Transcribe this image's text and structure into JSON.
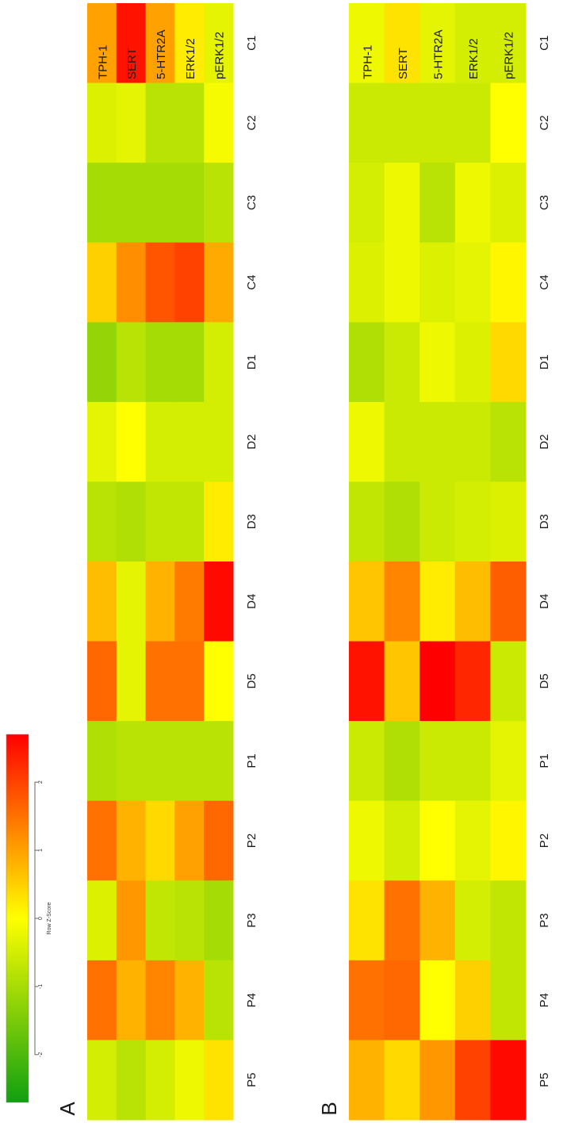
{
  "chart_data": {
    "type": "heatmap",
    "colorbar": {
      "label": "Row Z-Score",
      "ticks": [
        -2,
        -1,
        0,
        1,
        2
      ],
      "range": [
        -2.7,
        2.7
      ],
      "colors": [
        "#10a010",
        "#ffff00",
        "#ff0000"
      ]
    },
    "samples": [
      "C1",
      "C2",
      "C3",
      "C4",
      "D1",
      "D2",
      "D3",
      "D4",
      "D5",
      "P1",
      "P2",
      "P3",
      "P4",
      "P5"
    ],
    "genes": [
      "TPH-1",
      "SERT",
      "5-HTR2A",
      "ERK1/2",
      "pERK1/2"
    ],
    "panels": [
      {
        "letter": "A",
        "values": [
          [
            1.0,
            2.5,
            1.0,
            0.2,
            -0.3
          ],
          [
            -0.4,
            -0.3,
            -0.8,
            -0.8,
            -0.1
          ],
          [
            -1.0,
            -1.0,
            -1.0,
            -1.0,
            -0.8
          ],
          [
            0.5,
            1.2,
            1.8,
            2.0,
            0.9
          ],
          [
            -1.2,
            -0.8,
            -1.0,
            -1.0,
            -0.5
          ],
          [
            -0.3,
            0.0,
            -0.5,
            -0.5,
            -0.5
          ],
          [
            -0.8,
            -0.9,
            -0.7,
            -0.7,
            0.2
          ],
          [
            0.7,
            -0.3,
            0.8,
            1.4,
            2.6
          ],
          [
            1.6,
            -0.3,
            1.5,
            1.5,
            0.0
          ],
          [
            -0.9,
            -0.8,
            -0.8,
            -0.8,
            -0.8
          ],
          [
            1.5,
            0.8,
            0.4,
            1.0,
            1.6
          ],
          [
            -0.4,
            1.1,
            -0.7,
            -0.8,
            -1.0
          ],
          [
            1.5,
            0.8,
            1.3,
            0.8,
            -0.8
          ],
          [
            -0.5,
            -0.8,
            -0.5,
            -0.2,
            0.3
          ]
        ]
      },
      {
        "letter": "B",
        "values": [
          [
            -0.2,
            0.3,
            -0.3,
            -0.5,
            -0.5
          ],
          [
            -0.6,
            -0.6,
            -0.6,
            -0.6,
            0.0
          ],
          [
            -0.5,
            -0.2,
            -0.8,
            -0.2,
            -0.4
          ],
          [
            -0.4,
            -0.2,
            -0.4,
            -0.3,
            0.1
          ],
          [
            -0.9,
            -0.6,
            -0.2,
            -0.4,
            0.4
          ],
          [
            -0.2,
            -0.6,
            -0.6,
            -0.6,
            -0.8
          ],
          [
            -0.7,
            -0.9,
            -0.6,
            -0.5,
            -0.4
          ],
          [
            0.6,
            1.3,
            0.2,
            0.7,
            1.7
          ],
          [
            2.5,
            0.6,
            2.7,
            2.3,
            -0.6
          ],
          [
            -0.6,
            -0.9,
            -0.6,
            -0.6,
            -0.3
          ],
          [
            -0.2,
            -0.5,
            0.0,
            -0.3,
            0.1
          ],
          [
            0.3,
            1.5,
            0.8,
            -0.5,
            -0.7
          ],
          [
            1.5,
            1.6,
            0.0,
            0.5,
            -0.7
          ],
          [
            0.8,
            0.4,
            1.1,
            2.0,
            2.6
          ]
        ]
      }
    ]
  }
}
